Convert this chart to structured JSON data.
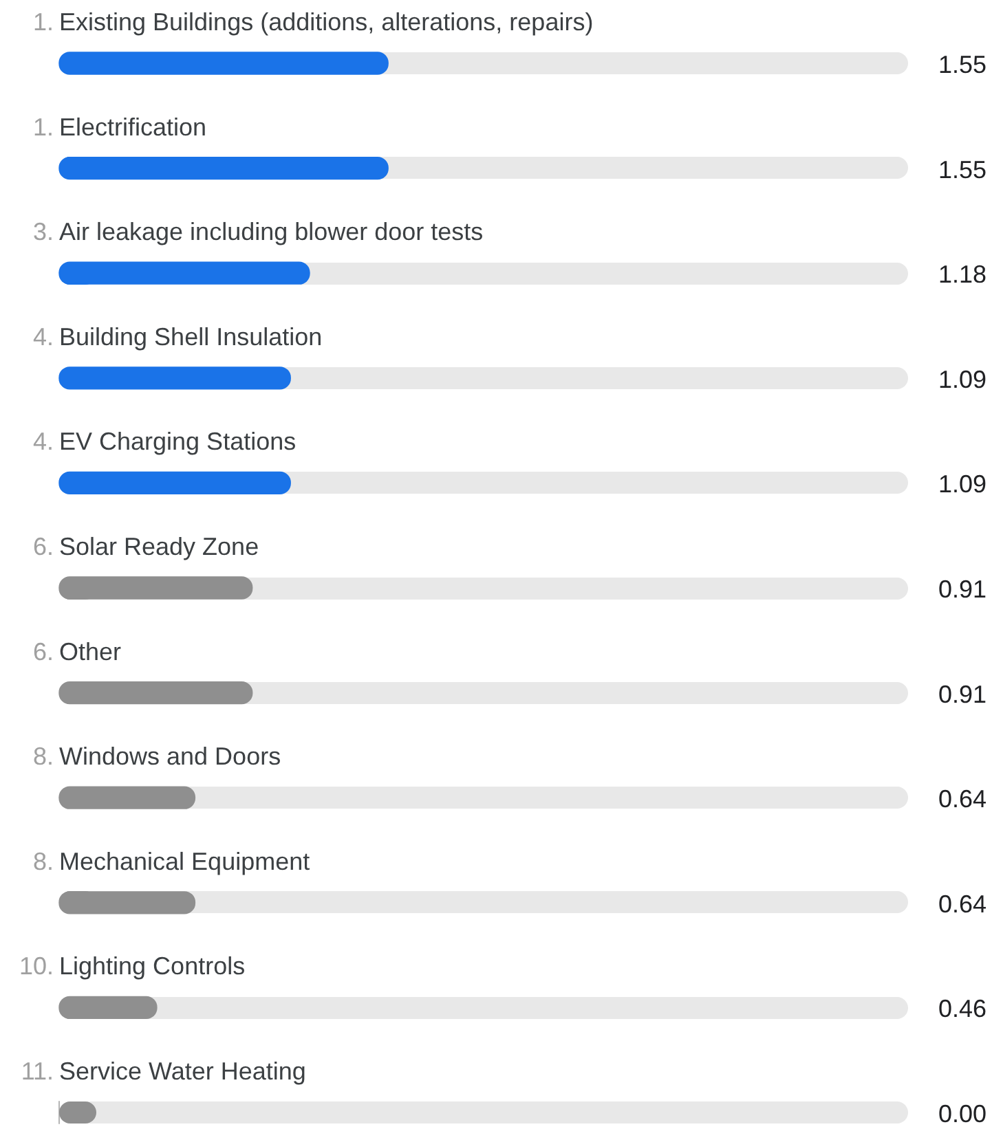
{
  "chart_data": {
    "type": "bar",
    "orientation": "horizontal",
    "categories": [
      "Existing Buildings (additions, alterations, repairs)",
      "Electrification",
      "Air leakage including blower door tests",
      "Building Shell Insulation",
      "EV Charging Stations",
      "Solar Ready Zone",
      "Other",
      "Windows and Doors",
      "Mechanical Equipment",
      "Lighting Controls",
      "Service Water Heating"
    ],
    "values": [
      1.55,
      1.55,
      1.18,
      1.09,
      1.09,
      0.91,
      0.91,
      0.64,
      0.64,
      0.46,
      0.0
    ],
    "value_labels": [
      "1.55",
      "1.55",
      "1.18",
      "1.09",
      "1.09",
      "0.91",
      "0.91",
      "0.64",
      "0.64",
      "0.46",
      "0.00"
    ],
    "colors": [
      "#1a73e8",
      "#1a73e8",
      "#1a73e8",
      "#1a73e8",
      "#1a73e8",
      "#8f8f8f",
      "#8f8f8f",
      "#8f8f8f",
      "#8f8f8f",
      "#8f8f8f",
      "#8f8f8f"
    ],
    "xlim": [
      0,
      4
    ],
    "annotations": [
      "1.",
      "1.",
      "3.",
      "4.",
      "4.",
      "6.",
      "6.",
      "8.",
      "8.",
      "10.",
      "11."
    ]
  }
}
